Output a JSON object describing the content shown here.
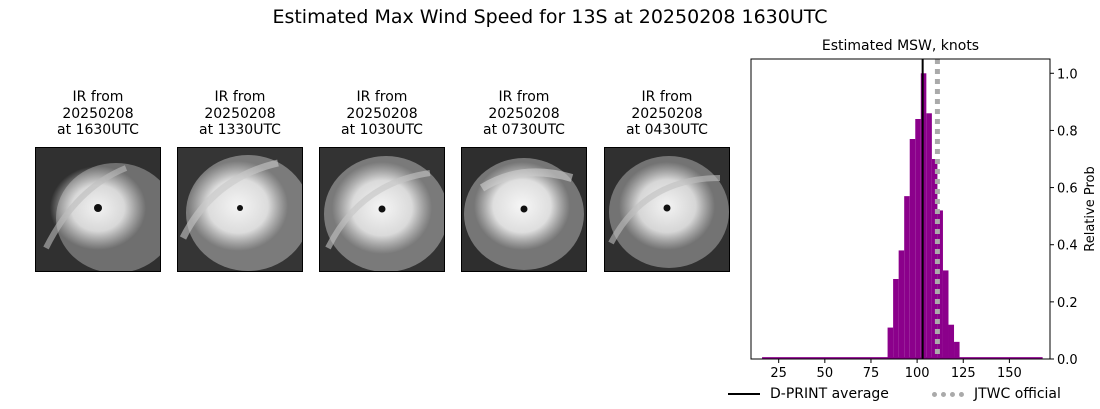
{
  "title": "Estimated Max Wind Speed for 13S at 20250208 1630UTC",
  "ir_panels": [
    {
      "line1": "IR from",
      "line2": "20250208",
      "line3": "at 1630UTC"
    },
    {
      "line1": "IR from",
      "line2": "20250208",
      "line3": "at 1330UTC"
    },
    {
      "line1": "IR from",
      "line2": "20250208",
      "line3": "at 1030UTC"
    },
    {
      "line1": "IR from",
      "line2": "20250208",
      "line3": "at 0730UTC"
    },
    {
      "line1": "IR from",
      "line2": "20250208",
      "line3": "at 0430UTC"
    }
  ],
  "chart_data": {
    "type": "bar",
    "title": "Estimated MSW, knots",
    "xlabel": "",
    "ylabel": "Relative Prob",
    "xlim": [
      10,
      172
    ],
    "ylim": [
      0,
      1.05
    ],
    "xticks": [
      25,
      50,
      75,
      100,
      125,
      150
    ],
    "yticks": [
      0.0,
      0.2,
      0.4,
      0.6,
      0.8,
      1.0
    ],
    "ytick_labels": [
      "0.0",
      "0.2",
      "0.4",
      "0.6",
      "0.8",
      "1.0"
    ],
    "y_axis_side": "right",
    "bar_color": "#8b008b",
    "bin_width": 3,
    "bins": [
      {
        "x": 84,
        "value": 0.11
      },
      {
        "x": 87,
        "value": 0.28
      },
      {
        "x": 90,
        "value": 0.38
      },
      {
        "x": 93,
        "value": 0.57
      },
      {
        "x": 96,
        "value": 0.77
      },
      {
        "x": 99,
        "value": 0.84
      },
      {
        "x": 102,
        "value": 1.0
      },
      {
        "x": 105,
        "value": 0.86
      },
      {
        "x": 108,
        "value": 0.7
      },
      {
        "x": 111,
        "value": 0.52
      },
      {
        "x": 114,
        "value": 0.31
      },
      {
        "x": 117,
        "value": 0.12
      },
      {
        "x": 120,
        "value": 0.06
      }
    ],
    "baseline_range": [
      16,
      168
    ],
    "lines": [
      {
        "name": "D-PRINT average",
        "x": 103,
        "color": "#000000",
        "style": "solid"
      },
      {
        "name": "JTWC official",
        "x": 111,
        "color": "#aaaaaa",
        "style": "dotted"
      }
    ],
    "legend_placement": "bottom"
  }
}
